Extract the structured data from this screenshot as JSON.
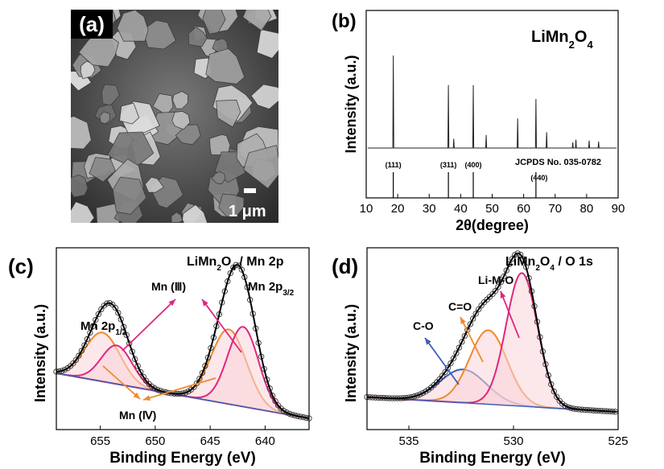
{
  "panel_a": {
    "label": "(a)",
    "scale_bar": "1 μm"
  },
  "panels": {
    "b": "(b)",
    "c": "(c)",
    "d": "(d)"
  },
  "colors": {
    "magenta": "#e0267e",
    "orange": "#ee8a2c",
    "blue": "#3b5fb8",
    "fill_pink": "#f9d4d8"
  },
  "chart_data": [
    {
      "id": "b",
      "type": "line",
      "title": "LiMn2O4",
      "xlabel": "2θ(degree)",
      "ylabel": "Intensity (a.u.)",
      "xlim": [
        10,
        90
      ],
      "xticks": [
        10,
        20,
        30,
        40,
        50,
        60,
        70,
        80,
        90
      ],
      "series": [
        {
          "x": [
            18.6,
            36.1,
            37.8,
            44.0,
            48.1,
            58.1,
            63.9,
            67.3,
            75.6,
            76.6,
            80.8,
            83.8
          ],
          "values": [
            100,
            68,
            10,
            68,
            14,
            32,
            53,
            17,
            6,
            9,
            8,
            7
          ]
        }
      ],
      "reference": {
        "label": "JCPDS No. 035-0782",
        "x": [
          18.6,
          36.1,
          44.0,
          63.9
        ],
        "hkl": [
          "(111)",
          "(311)",
          "(400)",
          "(440)"
        ]
      }
    },
    {
      "id": "c",
      "type": "line",
      "title": "LiMn2O4 / Mn 2p",
      "xlabel": "Binding Energy (eV)",
      "ylabel": "Intensity (a.u.)",
      "xlim": [
        659,
        636
      ],
      "xticks": [
        655,
        650,
        645,
        640
      ],
      "annotations": [
        "Mn 2p1/2",
        "Mn (Ⅲ)",
        "Mn 2p3/2",
        "Mn (Ⅳ)"
      ],
      "peaks": [
        {
          "center": 654.8,
          "height": 0.38,
          "width": 1.6,
          "component": "Mn (Ⅳ)"
        },
        {
          "center": 653.5,
          "height": 0.3,
          "width": 1.4,
          "component": "Mn (Ⅲ)"
        },
        {
          "center": 643.3,
          "height": 0.58,
          "width": 1.6,
          "component": "Mn (Ⅳ)"
        },
        {
          "center": 642.0,
          "height": 0.62,
          "width": 1.4,
          "component": "Mn (Ⅲ)"
        }
      ]
    },
    {
      "id": "d",
      "type": "line",
      "title": "LiMn2O4 / O 1s",
      "xlabel": "Binding Energy (eV)",
      "ylabel": "Intensity (a.u.)",
      "xlim": [
        537,
        525
      ],
      "xticks": [
        535,
        530,
        525
      ],
      "annotations": [
        "C-O",
        "C=O",
        "Li-M-O"
      ],
      "peaks": [
        {
          "center": 532.4,
          "height": 0.18,
          "width": 1.1,
          "component": "C-O"
        },
        {
          "center": 531.2,
          "height": 0.4,
          "width": 0.9,
          "component": "C=O"
        },
        {
          "center": 529.6,
          "height": 0.72,
          "width": 0.75,
          "component": "Li-M-O"
        }
      ]
    }
  ]
}
